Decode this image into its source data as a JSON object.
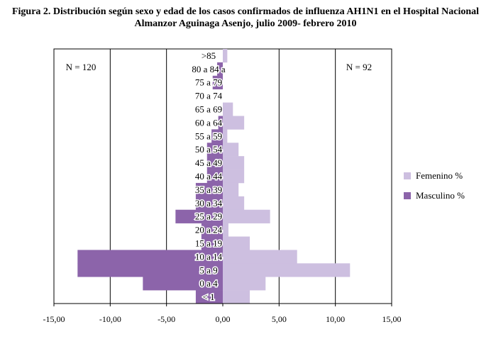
{
  "title": {
    "line1": "Figura 2. Distribución según sexo y edad de los casos confirmados de influenza AH1N1 en el Hospital Nacional",
    "line2": "Almanzor Aguinaga Asenjo, julio 2009- febrero 2010"
  },
  "chart_data": {
    "type": "bar",
    "orientation": "horizontal",
    "stacking": "population-pyramid",
    "title": "Figura 2. Distribución según sexo y edad de los casos confirmados de influenza AH1N1 en el Hospital Nacional Almanzor Aguinaga Asenjo, julio 2009- febrero 2010",
    "categories": [
      ">85",
      "80 a 84 a",
      "75 a 79",
      "70 a 74",
      "65 a 69",
      "60 a 64",
      "55 a 59",
      "50 a 54",
      "45 a 49",
      "40 a 44",
      "35 a 39",
      "30 a 34",
      "25 a 29",
      "20 a 24",
      "15 a 19",
      "10 a 14",
      "5 a 9",
      "0 a 4",
      "< 1"
    ],
    "series": [
      {
        "name": "Femenino %",
        "color": "#cdbfe0",
        "values": [
          0.4,
          0.0,
          0.0,
          0.0,
          0.9,
          1.9,
          0.4,
          1.4,
          1.9,
          1.9,
          1.4,
          1.9,
          4.2,
          0.5,
          2.4,
          6.6,
          11.3,
          3.8,
          2.4
        ]
      },
      {
        "name": "Masculino %",
        "color": "#8c64aa",
        "values": [
          0.0,
          -0.5,
          -0.9,
          0.0,
          0.0,
          -0.4,
          -1.0,
          -1.4,
          -1.4,
          -1.4,
          -2.4,
          -2.4,
          -4.2,
          -1.9,
          -1.9,
          -12.9,
          -12.9,
          -7.1,
          -2.4
        ]
      }
    ],
    "xlim": [
      -15,
      15
    ],
    "xticks": [
      -15,
      -10,
      -5,
      0,
      5,
      10,
      15
    ],
    "xtick_labels": [
      "-15,00",
      "-10,00",
      "-5,00",
      "0,00",
      "5,00",
      "10,00",
      "15,00"
    ],
    "gridlines": [
      -10,
      -5,
      5,
      10
    ],
    "annotations": [
      {
        "text": "N = 120",
        "side": "left"
      },
      {
        "text": "N = 92",
        "side": "right"
      }
    ],
    "legend_position": "right"
  }
}
